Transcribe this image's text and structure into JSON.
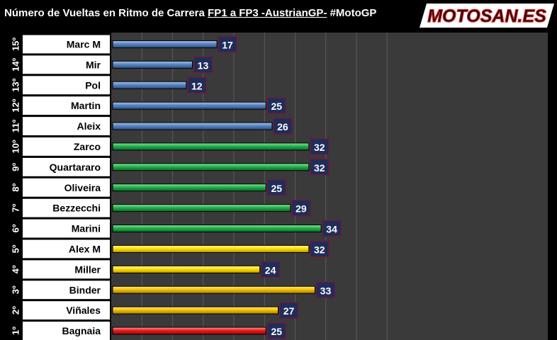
{
  "header": {
    "title_a": "Número de Vueltas en Ritmo de Carrera ",
    "title_b": "FP1 a FP3 -AustrianGP-",
    "title_c": " #MotoGP",
    "logo_text": "MOTOSAN.ES"
  },
  "colors": {
    "blue": "#4f81bd",
    "green": "#18b24a",
    "yellow": "#ffd800",
    "gold": "#f4c400",
    "red": "#ee1c1c",
    "label_box": "#1f2d5a",
    "plot_bg": "#3a3a3a"
  },
  "chart_data": {
    "type": "bar",
    "orientation": "horizontal",
    "title": "Número de Vueltas en Ritmo de Carrera FP1 a FP3 -AustrianGP- #MotoGP",
    "xlim": [
      0,
      45
    ],
    "grid": true,
    "rows": [
      {
        "pos": "15º",
        "rider": "Marc M",
        "value": 17,
        "color": "blue"
      },
      {
        "pos": "14º",
        "rider": "Mir",
        "value": 13,
        "color": "blue"
      },
      {
        "pos": "13º",
        "rider": "Pol",
        "value": 12,
        "color": "blue"
      },
      {
        "pos": "12º",
        "rider": "Martin",
        "value": 25,
        "color": "blue"
      },
      {
        "pos": "11º",
        "rider": "Aleix",
        "value": 26,
        "color": "blue"
      },
      {
        "pos": "10º",
        "rider": "Zarco",
        "value": 32,
        "color": "green"
      },
      {
        "pos": "9º",
        "rider": "Quartararo",
        "value": 32,
        "color": "green"
      },
      {
        "pos": "8º",
        "rider": "Oliveira",
        "value": 25,
        "color": "green"
      },
      {
        "pos": "7º",
        "rider": "Bezzecchi",
        "value": 29,
        "color": "green"
      },
      {
        "pos": "6º",
        "rider": "Marini",
        "value": 34,
        "color": "green"
      },
      {
        "pos": "5º",
        "rider": "Alex M",
        "value": 32,
        "color": "yellow"
      },
      {
        "pos": "4º",
        "rider": "Miller",
        "value": 24,
        "color": "yellow"
      },
      {
        "pos": "3º",
        "rider": "Binder",
        "value": 33,
        "color": "gold"
      },
      {
        "pos": "2º",
        "rider": "Viñales",
        "value": 27,
        "color": "gold"
      },
      {
        "pos": "1º",
        "rider": "Bagnaia",
        "value": 25,
        "color": "red"
      }
    ]
  }
}
